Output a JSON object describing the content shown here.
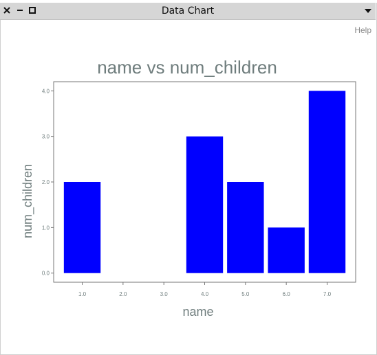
{
  "window": {
    "title": "Data Chart",
    "help_label": "Help"
  },
  "icons": {
    "close": "close-icon",
    "minimize": "minimize-icon",
    "maximize": "maximize-icon",
    "menu": "chevron-down-icon"
  },
  "colors": {
    "bar": "#0000ff",
    "title_text": "#6f7d7d",
    "axis_text": "#6f7d7d",
    "titlebar_bg": "#d6d6d6"
  },
  "chart_data": {
    "type": "bar",
    "title": "name vs num_children",
    "xlabel": "name",
    "ylabel": "num_children",
    "x": [
      1.0,
      2.0,
      3.0,
      4.0,
      5.0,
      6.0,
      7.0
    ],
    "values": [
      2.0,
      0.0,
      0.0,
      3.0,
      2.0,
      1.0,
      4.0
    ],
    "x_tick_labels": [
      "1.0",
      "2.0",
      "3.0",
      "4.0",
      "5.0",
      "6.0",
      "7.0"
    ],
    "y_ticks": [
      0.0,
      1.0,
      2.0,
      3.0,
      4.0
    ],
    "y_tick_labels": [
      "0.0",
      "1.0",
      "2.0",
      "3.0",
      "4.0"
    ],
    "xlim": [
      0.3,
      7.7
    ],
    "ylim": [
      -0.2,
      4.2
    ],
    "grid": false,
    "legend": "none"
  }
}
